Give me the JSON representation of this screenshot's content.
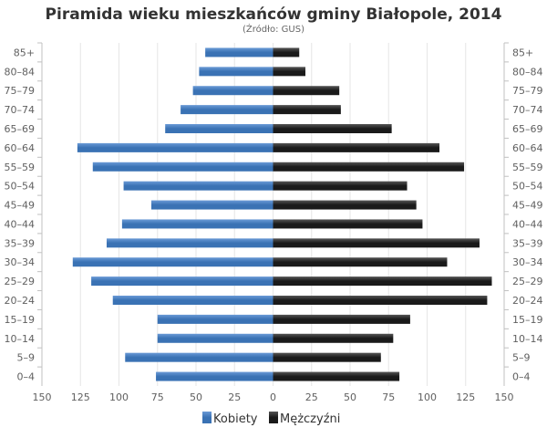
{
  "chart_data": {
    "type": "bar",
    "orientation": "horizontal-population-pyramid",
    "title": "Piramida wieku mieszkańców gminy Białopole, 2014",
    "subtitle": "(Źródło: GUS)",
    "categories": [
      "85+",
      "80–84",
      "75–79",
      "70–74",
      "65–69",
      "60–64",
      "55–59",
      "50–54",
      "45–49",
      "40–44",
      "35–39",
      "30–34",
      "25–29",
      "20–24",
      "15–19",
      "10–14",
      "5–9",
      "0–4"
    ],
    "series": [
      {
        "name": "Kobiety",
        "side": "left",
        "color": "#3a72b4",
        "values": [
          44,
          48,
          52,
          60,
          70,
          127,
          117,
          97,
          79,
          98,
          108,
          130,
          118,
          104,
          75,
          75,
          96,
          76
        ]
      },
      {
        "name": "Mężczyźni",
        "side": "right",
        "color": "#1a1a1a",
        "values": [
          17,
          21,
          43,
          44,
          77,
          108,
          124,
          87,
          93,
          97,
          134,
          113,
          142,
          139,
          89,
          78,
          70,
          82
        ]
      }
    ],
    "xticks": [
      "150",
      "125",
      "100",
      "75",
      "50",
      "25",
      "0",
      "25",
      "50",
      "75",
      "100",
      "125",
      "150"
    ],
    "xlim": [
      -150,
      150
    ],
    "grid": true,
    "legend_position": "bottom-center"
  }
}
